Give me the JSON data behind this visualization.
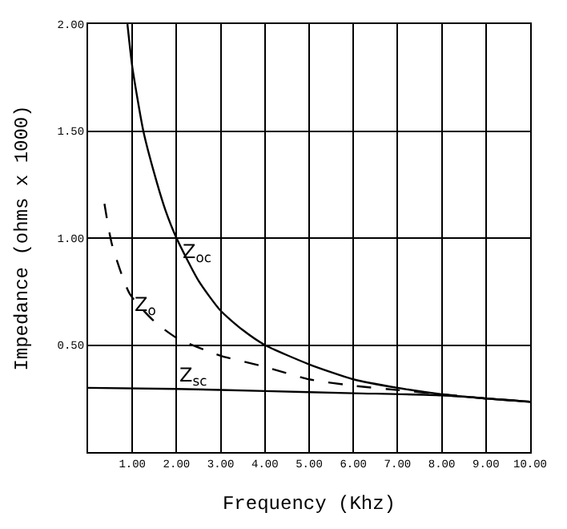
{
  "chart_data": {
    "type": "line",
    "xlabel": "Frequency (Khz)",
    "ylabel": "Impedance (ohms x 1000)",
    "xlim": [
      0,
      10
    ],
    "ylim": [
      0,
      2
    ],
    "xticks": [
      {
        "value": 1,
        "label": "1.00"
      },
      {
        "value": 2,
        "label": "2.00"
      },
      {
        "value": 3,
        "label": "3.00"
      },
      {
        "value": 4,
        "label": "4.00"
      },
      {
        "value": 5,
        "label": "5.00"
      },
      {
        "value": 6,
        "label": "6.00"
      },
      {
        "value": 7,
        "label": "7.00"
      },
      {
        "value": 8,
        "label": "8.00"
      },
      {
        "value": 9,
        "label": "9.00"
      },
      {
        "value": 10,
        "label": "10.00"
      }
    ],
    "yticks": [
      {
        "value": 0.5,
        "label": "0.50"
      },
      {
        "value": 1,
        "label": "1.00"
      },
      {
        "value": 1.5,
        "label": "1.50"
      },
      {
        "value": 2,
        "label": "2.00"
      }
    ],
    "grid": true,
    "series": [
      {
        "color": "#000000",
        "line_style": "solid",
        "x": [
          0.89,
          1.0,
          1.25,
          1.5,
          1.75,
          2.0,
          2.5,
          3.0,
          3.5,
          4.0,
          5.0,
          6.0,
          7.0,
          8.0,
          9.0,
          10.0
        ],
        "values": [
          2.0,
          1.8,
          1.5,
          1.3,
          1.13,
          1.0,
          0.8,
          0.66,
          0.57,
          0.5,
          0.41,
          0.34,
          0.3,
          0.27,
          0.25,
          0.235
        ]
      },
      {
        "color": "#000000",
        "line_style": "dashed",
        "x": [
          0.37,
          0.54,
          0.94,
          1.5,
          2.03,
          3.0,
          3.97,
          5.0,
          6.0,
          7.0,
          8.0,
          9.0,
          10.0
        ],
        "values": [
          1.16,
          0.97,
          0.74,
          0.61,
          0.53,
          0.45,
          0.4,
          0.34,
          0.31,
          0.29,
          0.27,
          0.25,
          0.235
        ]
      },
      {
        "color": "#000000",
        "line_style": "solid",
        "x": [
          0,
          2,
          4,
          6,
          8,
          10
        ],
        "values": [
          0.3,
          0.295,
          0.285,
          0.275,
          0.265,
          0.235
        ]
      }
    ],
    "annotations": [
      "Z$_{oc}$",
      "Z$_{o}$",
      "Z$_{sc}$"
    ]
  }
}
